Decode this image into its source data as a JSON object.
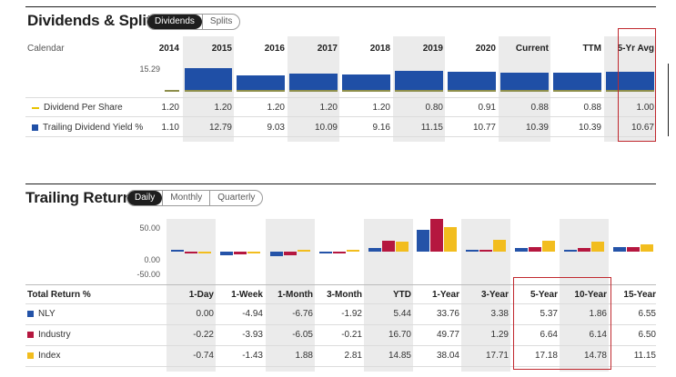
{
  "dividends": {
    "title": "Dividends & Splits",
    "toggle": [
      "Dividends",
      "Splits"
    ],
    "row_label_calendar": "Calendar",
    "columns": [
      "2014",
      "2015",
      "2016",
      "2017",
      "2018",
      "2019",
      "2020",
      "Current",
      "TTM",
      "5-Yr Avg"
    ],
    "axis_max_label": "15.29",
    "rows": [
      {
        "label": "Dividend Per Share",
        "values": [
          "1.20",
          "1.20",
          "1.20",
          "1.20",
          "1.20",
          "0.80",
          "0.91",
          "0.88",
          "0.88",
          "1.00"
        ]
      },
      {
        "label": "Trailing Dividend Yield %",
        "values": [
          "1.10",
          "12.79",
          "9.03",
          "10.09",
          "9.16",
          "11.15",
          "10.77",
          "10.39",
          "10.39",
          "10.67"
        ]
      }
    ],
    "colors": {
      "yield": "#1f4fa6",
      "dividend": "#e8c300"
    }
  },
  "returns": {
    "title": "Trailing Returns",
    "toggle": [
      "Daily",
      "Monthly",
      "Quarterly"
    ],
    "axis_labels": [
      "50.00",
      "0.00",
      "-50.00"
    ],
    "row_header": "Total Return %",
    "columns": [
      "1-Day",
      "1-Week",
      "1-Month",
      "3-Month",
      "YTD",
      "1-Year",
      "3-Year",
      "5-Year",
      "10-Year",
      "15-Year"
    ],
    "rows": [
      {
        "label": "NLY",
        "color": "#2453a8",
        "values": [
          "0.00",
          "-4.94",
          "-6.76",
          "-1.92",
          "5.44",
          "33.76",
          "3.38",
          "5.37",
          "1.86",
          "6.55"
        ]
      },
      {
        "label": "Industry",
        "color": "#b5173f",
        "values": [
          "-0.22",
          "-3.93",
          "-6.05",
          "-0.21",
          "16.70",
          "49.77",
          "1.29",
          "6.64",
          "6.14",
          "6.50"
        ]
      },
      {
        "label": "Index",
        "color": "#f2bd1e",
        "values": [
          "-0.74",
          "-1.43",
          "1.88",
          "2.81",
          "14.85",
          "38.04",
          "17.71",
          "17.18",
          "14.78",
          "11.15"
        ]
      }
    ]
  }
}
